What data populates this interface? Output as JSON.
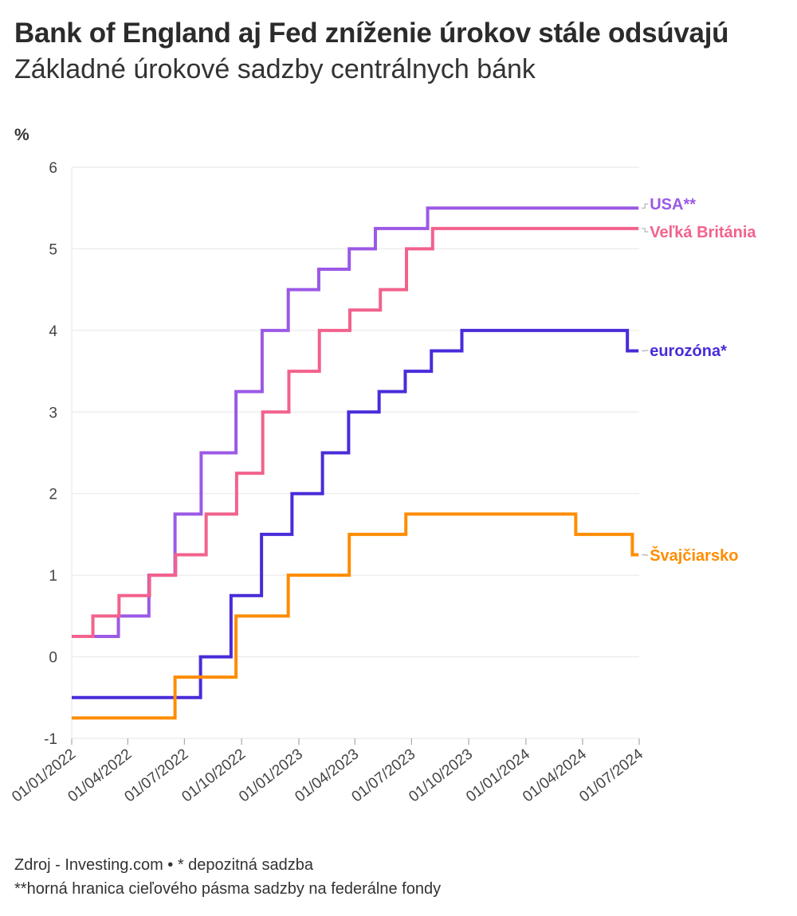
{
  "header": {
    "title": "Bank of England aj Fed zníženie úrokov stále odsúvajú",
    "subtitle": "Základné úrokové sadzby centrálnych bánk"
  },
  "footer": {
    "line1": "Zdroj - Investing.com • * depozitná sadzba",
    "line2": "**horná hranica cieľového pásma sadzby na federálne fondy"
  },
  "chart_data": {
    "type": "line",
    "step": true,
    "title": "Bank of England aj Fed zníženie úrokov stále odsúvajú",
    "subtitle": "Základné úrokové sadzby centrálnych bánk",
    "ylabel": "%",
    "ylim": [
      -1,
      6
    ],
    "yticks": [
      -1,
      0,
      1,
      2,
      3,
      4,
      5,
      6
    ],
    "xlim": [
      "2022-01-01",
      "2024-07-01"
    ],
    "xticks": [
      {
        "date": "2022-01-01",
        "label": "01/01/2022"
      },
      {
        "date": "2022-04-01",
        "label": "01/04/2022"
      },
      {
        "date": "2022-07-01",
        "label": "01/07/2022"
      },
      {
        "date": "2022-10-01",
        "label": "01/10/2022"
      },
      {
        "date": "2023-01-01",
        "label": "01/01/2023"
      },
      {
        "date": "2023-04-01",
        "label": "01/04/2023"
      },
      {
        "date": "2023-07-01",
        "label": "01/07/2023"
      },
      {
        "date": "2023-10-01",
        "label": "01/10/2023"
      },
      {
        "date": "2024-01-01",
        "label": "01/01/2024"
      },
      {
        "date": "2024-04-01",
        "label": "01/04/2024"
      },
      {
        "date": "2024-07-01",
        "label": "01/07/2024"
      }
    ],
    "grid": true,
    "series": [
      {
        "name": "USA**",
        "color": "#9b59e6",
        "steps": [
          {
            "date": "2022-01-01",
            "value": 0.25
          },
          {
            "date": "2022-03-17",
            "value": 0.5
          },
          {
            "date": "2022-05-05",
            "value": 1.0
          },
          {
            "date": "2022-06-16",
            "value": 1.75
          },
          {
            "date": "2022-07-28",
            "value": 2.5
          },
          {
            "date": "2022-09-22",
            "value": 3.25
          },
          {
            "date": "2022-11-03",
            "value": 4.0
          },
          {
            "date": "2022-12-15",
            "value": 4.5
          },
          {
            "date": "2023-02-02",
            "value": 4.75
          },
          {
            "date": "2023-03-23",
            "value": 5.0
          },
          {
            "date": "2023-05-04",
            "value": 5.25
          },
          {
            "date": "2023-07-27",
            "value": 5.5
          },
          {
            "date": "2024-06-30",
            "value": 5.5
          }
        ]
      },
      {
        "name": "Veľká Británia",
        "color": "#f2628c",
        "steps": [
          {
            "date": "2022-01-01",
            "value": 0.25
          },
          {
            "date": "2022-02-04",
            "value": 0.5
          },
          {
            "date": "2022-03-18",
            "value": 0.75
          },
          {
            "date": "2022-05-06",
            "value": 1.0
          },
          {
            "date": "2022-06-17",
            "value": 1.25
          },
          {
            "date": "2022-08-05",
            "value": 1.75
          },
          {
            "date": "2022-09-23",
            "value": 2.25
          },
          {
            "date": "2022-11-04",
            "value": 3.0
          },
          {
            "date": "2022-12-16",
            "value": 3.5
          },
          {
            "date": "2023-02-03",
            "value": 4.0
          },
          {
            "date": "2023-03-24",
            "value": 4.25
          },
          {
            "date": "2023-05-12",
            "value": 4.5
          },
          {
            "date": "2023-06-23",
            "value": 5.0
          },
          {
            "date": "2023-08-04",
            "value": 5.25
          },
          {
            "date": "2024-06-30",
            "value": 5.25
          }
        ]
      },
      {
        "name": "eurozóna*",
        "color": "#4a2bd9",
        "steps": [
          {
            "date": "2022-01-01",
            "value": -0.5
          },
          {
            "date": "2022-07-27",
            "value": 0.0
          },
          {
            "date": "2022-09-14",
            "value": 0.75
          },
          {
            "date": "2022-11-02",
            "value": 1.5
          },
          {
            "date": "2022-12-21",
            "value": 2.0
          },
          {
            "date": "2023-02-08",
            "value": 2.5
          },
          {
            "date": "2023-03-22",
            "value": 3.0
          },
          {
            "date": "2023-05-10",
            "value": 3.25
          },
          {
            "date": "2023-06-21",
            "value": 3.5
          },
          {
            "date": "2023-08-02",
            "value": 3.75
          },
          {
            "date": "2023-09-20",
            "value": 4.0
          },
          {
            "date": "2024-06-12",
            "value": 3.75
          },
          {
            "date": "2024-06-30",
            "value": 3.75
          }
        ]
      },
      {
        "name": "Švajčiarsko",
        "color": "#ff8c00",
        "steps": [
          {
            "date": "2022-01-01",
            "value": -0.75
          },
          {
            "date": "2022-06-16",
            "value": -0.25
          },
          {
            "date": "2022-09-22",
            "value": 0.5
          },
          {
            "date": "2022-12-15",
            "value": 1.0
          },
          {
            "date": "2023-03-23",
            "value": 1.5
          },
          {
            "date": "2023-06-22",
            "value": 1.75
          },
          {
            "date": "2024-03-21",
            "value": 1.5
          },
          {
            "date": "2024-06-20",
            "value": 1.25
          },
          {
            "date": "2024-06-30",
            "value": 1.25
          }
        ]
      }
    ]
  }
}
